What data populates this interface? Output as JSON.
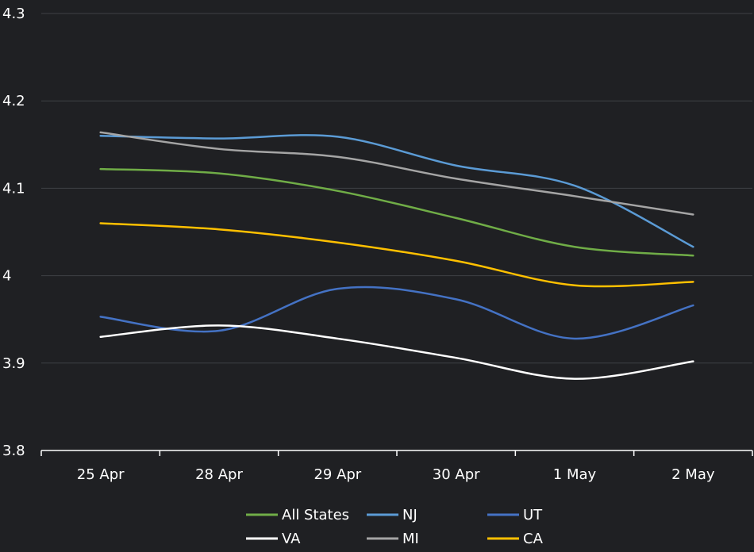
{
  "chart_data": {
    "type": "line",
    "title": "",
    "xlabel": "",
    "ylabel": "",
    "categories": [
      "25 Apr",
      "28 Apr",
      "29 Apr",
      "30 Apr",
      "1 May",
      "2 May"
    ],
    "ylim": [
      3.8,
      4.3
    ],
    "yticks": [
      "4.3",
      "4.2",
      "4.1",
      "4",
      "3.9",
      "3.8"
    ],
    "ytick_values": [
      4.3,
      4.2,
      4.1,
      4.0,
      3.9,
      3.8
    ],
    "grid": true,
    "legend_position": "bottom",
    "series": [
      {
        "name": "All States",
        "color": "#70ad47",
        "values": [
          4.122,
          4.117,
          4.097,
          4.066,
          4.033,
          4.023
        ]
      },
      {
        "name": "NJ",
        "color": "#5b9bd5",
        "values": [
          4.16,
          4.157,
          4.159,
          4.126,
          4.103,
          4.033
        ]
      },
      {
        "name": "UT",
        "color": "#4472c4",
        "values": [
          3.953,
          3.937,
          3.985,
          3.973,
          3.928,
          3.966
        ]
      },
      {
        "name": "VA",
        "color": "#ffffff",
        "values": [
          3.93,
          3.943,
          3.928,
          3.906,
          3.882,
          3.902
        ]
      },
      {
        "name": "MI",
        "color": "#a5a5a5",
        "values": [
          4.164,
          4.145,
          4.136,
          4.111,
          4.091,
          4.07
        ]
      },
      {
        "name": "CA",
        "color": "#ffc000",
        "values": [
          4.06,
          4.053,
          4.038,
          4.017,
          3.989,
          3.993
        ]
      }
    ]
  }
}
